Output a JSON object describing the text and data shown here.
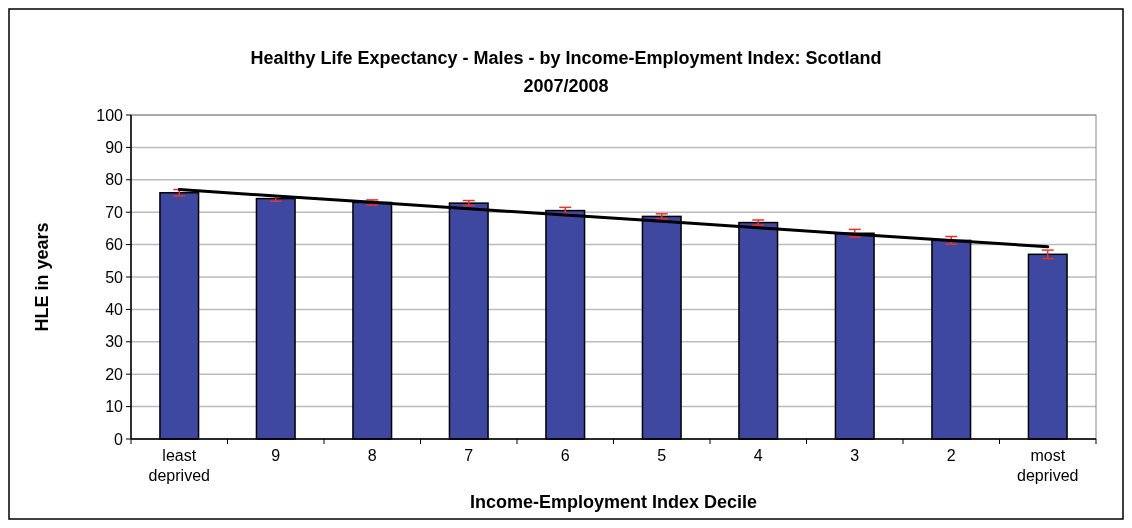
{
  "chart_data": {
    "type": "bar",
    "title": "Healthy Life Expectancy - Males - by Income-Employment Index: Scotland",
    "subtitle": "2007/2008",
    "xlabel": "Income-Employment Index Decile",
    "ylabel": "HLE in years",
    "categories": [
      "least deprived",
      "9",
      "8",
      "7",
      "6",
      "5",
      "4",
      "3",
      "2",
      "most deprived"
    ],
    "series": [
      {
        "color": "#3f48a0",
        "values": [
          76,
          74.2,
          73,
          72.8,
          70.5,
          68.7,
          66.8,
          63.5,
          61.3,
          57
        ],
        "errors": [
          1,
          0.8,
          0.8,
          0.8,
          1,
          0.8,
          0.8,
          1.2,
          1.2,
          1.3
        ]
      },
      {
        "type": "line",
        "color": "#000000",
        "values": [
          77,
          75,
          73.1,
          71.1,
          69.1,
          67.2,
          65.2,
          63.2,
          61.3,
          59.3
        ]
      }
    ],
    "ylim": [
      0,
      100
    ],
    "yticks": [
      0,
      10,
      20,
      30,
      40,
      50,
      60,
      70,
      80,
      90,
      100
    ],
    "grid": "y"
  }
}
